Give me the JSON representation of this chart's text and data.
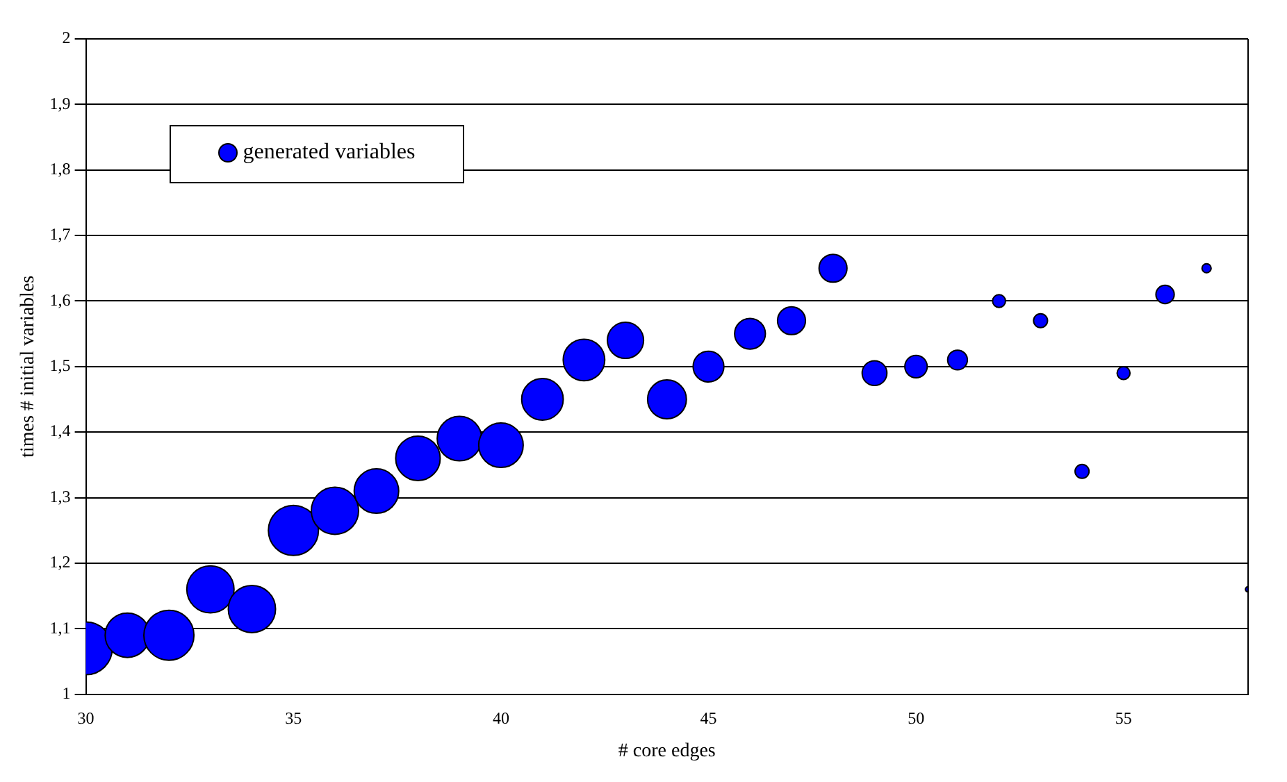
{
  "chart_data": {
    "type": "bubble",
    "xlabel": "# core edges",
    "ylabel": "times # initial variables",
    "x": [
      30,
      31,
      32,
      33,
      34,
      35,
      36,
      37,
      38,
      39,
      40,
      41,
      42,
      43,
      44,
      45,
      46,
      47,
      48,
      49,
      50,
      51,
      52,
      53,
      54,
      55,
      56,
      57,
      58
    ],
    "series": [
      {
        "name": "generated variables",
        "color": "#0000ff",
        "values": [
          1.07,
          1.09,
          1.09,
          1.16,
          1.13,
          1.25,
          1.28,
          1.31,
          1.36,
          1.39,
          1.38,
          1.45,
          1.51,
          1.54,
          1.45,
          1.5,
          1.55,
          1.57,
          1.65,
          1.49,
          1.5,
          1.51,
          1.6,
          1.57,
          1.34,
          1.49,
          1.61,
          1.65,
          1.16
        ],
        "sizes": [
          1,
          0.71,
          0.9,
          0.8,
          0.8,
          0.9,
          0.8,
          0.71,
          0.71,
          0.71,
          0.71,
          0.62,
          0.62,
          0.47,
          0.54,
          0.34,
          0.34,
          0.28,
          0.28,
          0.22,
          0.18,
          0.14,
          0.06,
          0.07,
          0.07,
          0.06,
          0.12,
          0.03,
          0.01
        ]
      }
    ],
    "xlim": [
      30,
      58
    ],
    "xticks": [
      30,
      35,
      40,
      45,
      50,
      55
    ],
    "ylim": [
      1,
      2
    ],
    "yticks": [
      1,
      {
        "value": 1.1,
        "label": "1,1"
      },
      {
        "value": 1.2,
        "label": "1,2"
      },
      {
        "value": 1.3,
        "label": "1,3"
      },
      {
        "value": 1.4,
        "label": "1,4"
      },
      {
        "value": 1.5,
        "label": "1,5"
      },
      {
        "value": 1.6,
        "label": "1,6"
      },
      {
        "value": 1.7,
        "label": "1,7"
      },
      {
        "value": 1.8,
        "label": "1,8"
      },
      {
        "value": 1.9,
        "label": "1,9"
      },
      2
    ],
    "grid": "y",
    "legend": "top left"
  }
}
